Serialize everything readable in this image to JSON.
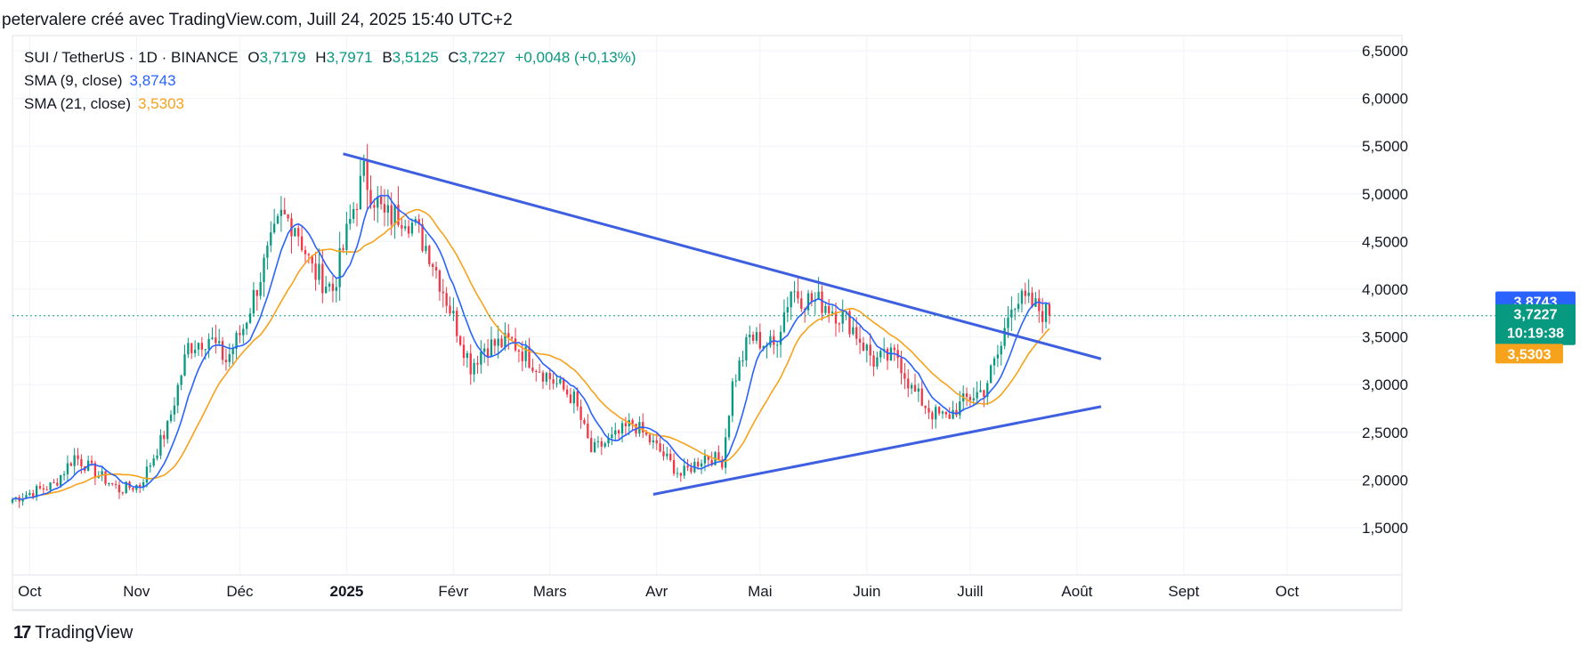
{
  "header": {
    "text": "petervalere créé avec TradingView.com, Juill 24, 2025 15:40 UTC+2"
  },
  "legend": {
    "symbol": "SUI / TetherUS · 1D · BINANCE",
    "open_label": "O",
    "open": "3,7179",
    "high_label": "H",
    "high": "3,7971",
    "low_label": "B",
    "low": "3,5125",
    "close_label": "C",
    "close": "3,7227",
    "change": "+0,0048 (+0,13%)",
    "sma9_label": "SMA (9, close)",
    "sma9_value": "3,8743",
    "sma21_label": "SMA (21, close)",
    "sma21_value": "3,5303"
  },
  "badges": {
    "sma9": {
      "value": "3,8743",
      "color": "#2962ff"
    },
    "price": {
      "value": "3,7227",
      "countdown": "10:19:38",
      "color": "#089981"
    },
    "sma21": {
      "value": "3,5303",
      "color": "#f7a21b"
    }
  },
  "footer": {
    "logo_mark": "17",
    "brand": "TradingView"
  },
  "colors": {
    "up": "#089981",
    "down": "#f23645",
    "sma9": "#2962ff",
    "sma21": "#f7a21b",
    "trendline": "#3d5fe0"
  },
  "chart_data": {
    "type": "candlestick",
    "ylim": [
      1.0,
      6.7
    ],
    "y_ticks": [
      "6,5000",
      "6,0000",
      "5,5000",
      "5,0000",
      "4,5000",
      "4,0000",
      "3,5000",
      "3,0000",
      "2,5000",
      "2,0000",
      "1,5000"
    ],
    "y_tick_values": [
      6.5,
      6.0,
      5.5,
      5.0,
      4.5,
      4.0,
      3.5,
      3.0,
      2.5,
      2.0,
      1.5
    ],
    "x_ticks": [
      {
        "label": "Oct",
        "date": "2024-10-01"
      },
      {
        "label": "Nov",
        "date": "2024-11-01"
      },
      {
        "label": "Déc",
        "date": "2024-12-01"
      },
      {
        "label": "2025",
        "date": "2025-01-01",
        "bold": true
      },
      {
        "label": "Févr",
        "date": "2025-02-01"
      },
      {
        "label": "Mars",
        "date": "2025-03-01"
      },
      {
        "label": "Avr",
        "date": "2025-04-01"
      },
      {
        "label": "Mai",
        "date": "2025-05-01"
      },
      {
        "label": "Juin",
        "date": "2025-06-01"
      },
      {
        "label": "Juill",
        "date": "2025-07-01"
      },
      {
        "label": "Août",
        "date": "2025-08-01"
      },
      {
        "label": "Sept",
        "date": "2025-09-01"
      },
      {
        "label": "Oct",
        "date": "2025-10-01"
      }
    ],
    "x_range": [
      "2024-09-26",
      "2025-10-24"
    ],
    "last_date": "2025-07-24",
    "close_anchors": [
      [
        "2024-09-26",
        1.8
      ],
      [
        "2024-10-08",
        1.95
      ],
      [
        "2024-10-14",
        2.25
      ],
      [
        "2024-10-20",
        2.08
      ],
      [
        "2024-10-27",
        1.9
      ],
      [
        "2024-11-02",
        1.95
      ],
      [
        "2024-11-10",
        2.55
      ],
      [
        "2024-11-16",
        3.4
      ],
      [
        "2024-11-22",
        3.5
      ],
      [
        "2024-11-27",
        3.25
      ],
      [
        "2024-12-02",
        3.6
      ],
      [
        "2024-12-08",
        4.25
      ],
      [
        "2024-12-13",
        4.75
      ],
      [
        "2024-12-17",
        4.7
      ],
      [
        "2024-12-22",
        4.2
      ],
      [
        "2024-12-28",
        4.0
      ],
      [
        "2025-01-03",
        4.85
      ],
      [
        "2025-01-06",
        5.2
      ],
      [
        "2025-01-12",
        4.75
      ],
      [
        "2025-01-18",
        4.8
      ],
      [
        "2025-01-25",
        4.4
      ],
      [
        "2025-02-01",
        3.7
      ],
      [
        "2025-02-06",
        3.2
      ],
      [
        "2025-02-10",
        3.4
      ],
      [
        "2025-02-18",
        3.45
      ],
      [
        "2025-02-28",
        3.1
      ],
      [
        "2025-03-08",
        2.85
      ],
      [
        "2025-03-13",
        2.3
      ],
      [
        "2025-03-20",
        2.45
      ],
      [
        "2025-03-25",
        2.6
      ],
      [
        "2025-04-02",
        2.3
      ],
      [
        "2025-04-08",
        2.05
      ],
      [
        "2025-04-15",
        2.25
      ],
      [
        "2025-04-20",
        2.2
      ],
      [
        "2025-04-23",
        3.0
      ],
      [
        "2025-04-28",
        3.5
      ],
      [
        "2025-05-05",
        3.4
      ],
      [
        "2025-05-10",
        4.0
      ],
      [
        "2025-05-14",
        3.9
      ],
      [
        "2025-05-20",
        3.85
      ],
      [
        "2025-05-27",
        3.65
      ],
      [
        "2025-06-03",
        3.25
      ],
      [
        "2025-06-10",
        3.3
      ],
      [
        "2025-06-14",
        2.95
      ],
      [
        "2025-06-20",
        2.7
      ],
      [
        "2025-06-24",
        2.65
      ],
      [
        "2025-06-30",
        2.85
      ],
      [
        "2025-07-05",
        2.95
      ],
      [
        "2025-07-10",
        3.4
      ],
      [
        "2025-07-13",
        3.9
      ],
      [
        "2025-07-18",
        3.85
      ],
      [
        "2025-07-24",
        3.7227
      ]
    ],
    "sma9_last": 3.8743,
    "sma21_last": 3.5303,
    "last_close": 3.7227,
    "trendlines": [
      {
        "name": "upper",
        "from": [
          "2024-12-31",
          5.42
        ],
        "to": [
          "2025-08-08",
          3.27
        ]
      },
      {
        "name": "lower",
        "from": [
          "2025-03-31",
          1.85
        ],
        "to": [
          "2025-08-08",
          2.77
        ]
      }
    ]
  }
}
